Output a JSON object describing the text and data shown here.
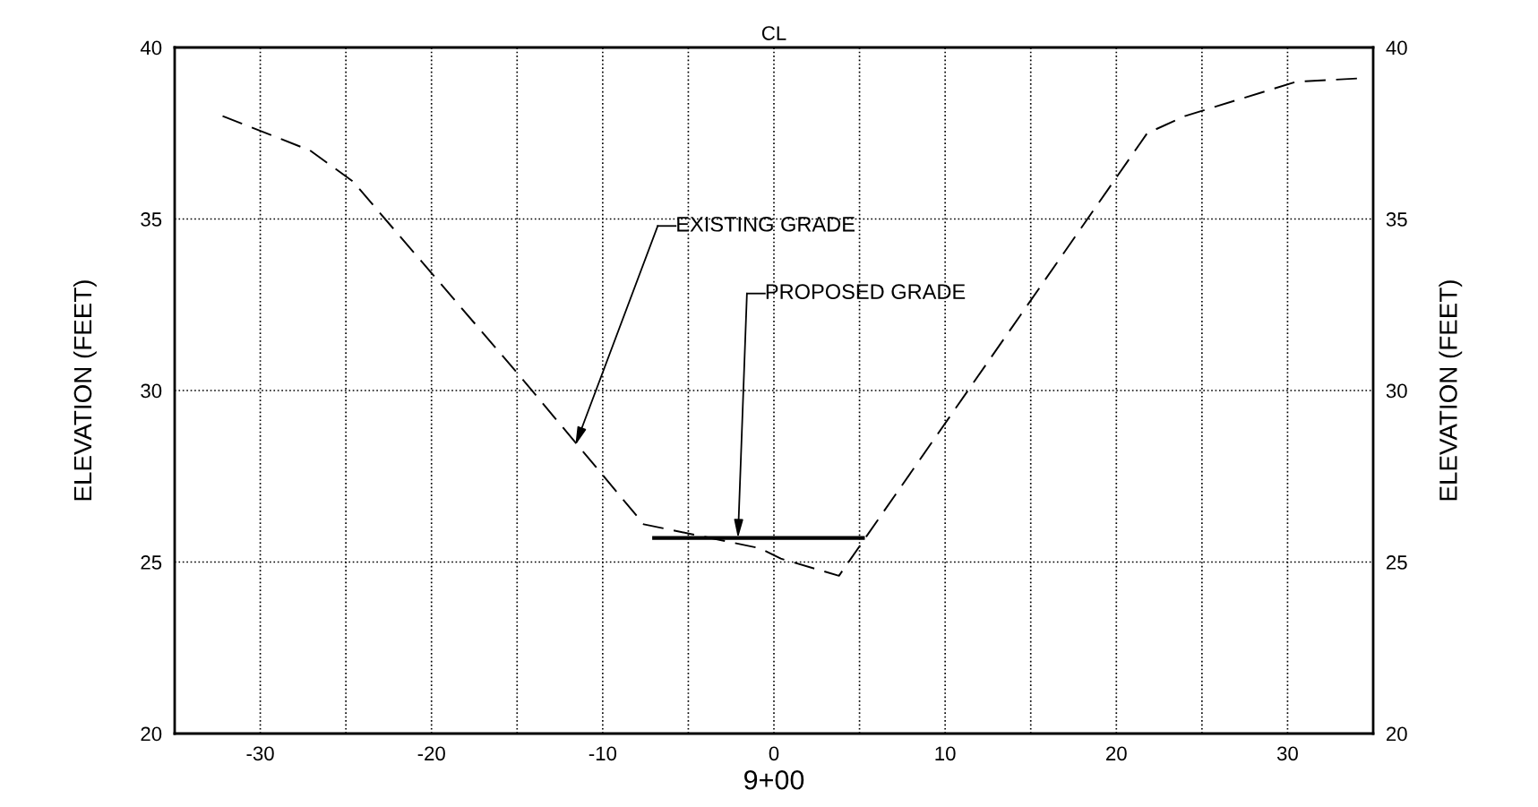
{
  "chart_data": {
    "type": "line",
    "title": "CL",
    "xlabel": "9+00",
    "ylabel": "ELEVATION (FEET)",
    "y2label": "ELEVATION (FEET)",
    "xlim": [
      -35,
      35
    ],
    "xticks": [
      {
        "value": -35,
        "label": null
      },
      -30,
      {
        "value": -25,
        "label": null
      },
      -20,
      {
        "value": -15,
        "label": null
      },
      -10,
      {
        "value": -5,
        "label": null
      },
      0,
      {
        "value": 5,
        "label": null
      },
      10,
      {
        "value": 15,
        "label": null
      },
      20,
      {
        "value": 25,
        "label": null
      },
      30,
      {
        "value": 35,
        "label": null
      }
    ],
    "ylim": [
      20,
      40
    ],
    "yticks": [
      20,
      25,
      30,
      35,
      40
    ],
    "y2lim": [
      20,
      40
    ],
    "y2ticks": [
      20,
      25,
      30,
      35,
      40
    ],
    "grid": true,
    "legend": false,
    "marker": "none",
    "series": [
      {
        "color": "#000000",
        "line_style": "dashed",
        "x": [
          -32.2,
          -27.1,
          -24.6,
          -14.8,
          -7.6,
          -0.8,
          0.4,
          3.8,
          21.8,
          24.0,
          30.5,
          34.2
        ],
        "values": [
          38.0,
          37.0,
          36.1,
          30.4,
          26.1,
          25.4,
          25.1,
          24.6,
          37.5,
          38.0,
          39.0,
          39.1
        ]
      },
      {
        "color": "#000000",
        "line_style": "solid",
        "x": [
          -7.0,
          5.2
        ],
        "values": [
          25.7,
          25.7
        ]
      }
    ],
    "annotations": [
      {
        "text": "EXISTING GRADE",
        "x": -11.6,
        "y": 28.4
      },
      {
        "text": "PROPOSED GRADE",
        "x": -2.1,
        "y": 25.7
      }
    ]
  }
}
